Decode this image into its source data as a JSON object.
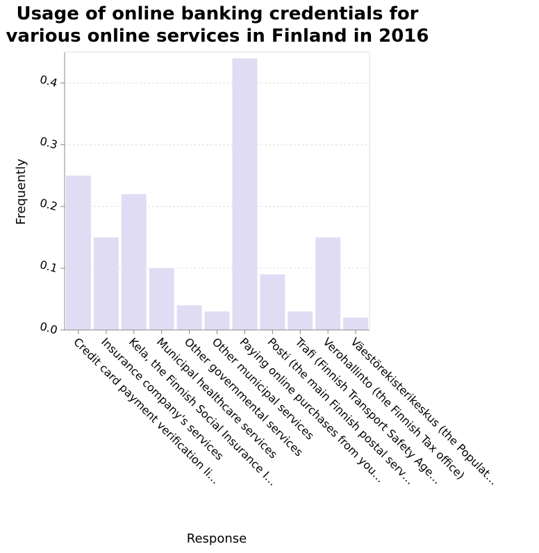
{
  "chart_data": {
    "type": "bar",
    "title": "Usage of online banking credentials for various online services in Finland in 2016",
    "title_lines": [
      "Usage of online banking credentials for",
      "various online services in Finland in 2016"
    ],
    "xlabel": "Response",
    "ylabel": "Frequently",
    "categories": [
      "Credit card payment verification li…",
      "Insurance company's services",
      "Kela, the Finnish Social Insurance I…",
      "Municipal healthcare services",
      "Other governmental services",
      "Other municipal services",
      "Paying online purchases from you…",
      "Posti (the main Finnish postal serv…",
      "Trafi (Finnish Transport Safety Age…",
      "Verohallinto (the Finnish Tax office)",
      "Väestörekisterikeskus (the Populat…"
    ],
    "values": [
      0.25,
      0.15,
      0.22,
      0.1,
      0.04,
      0.03,
      0.44,
      0.09,
      0.03,
      0.15,
      0.02
    ],
    "ylim": [
      0,
      0.45
    ],
    "yticks": [
      0.0,
      0.1,
      0.2,
      0.3,
      0.4
    ],
    "ytick_labels": [
      "0.0",
      "0.1",
      "0.2",
      "0.3",
      "0.4"
    ],
    "grid": true,
    "bar_color": "#e0dcf3",
    "grid_color": "#dddddd",
    "axis_color": "#888888"
  }
}
